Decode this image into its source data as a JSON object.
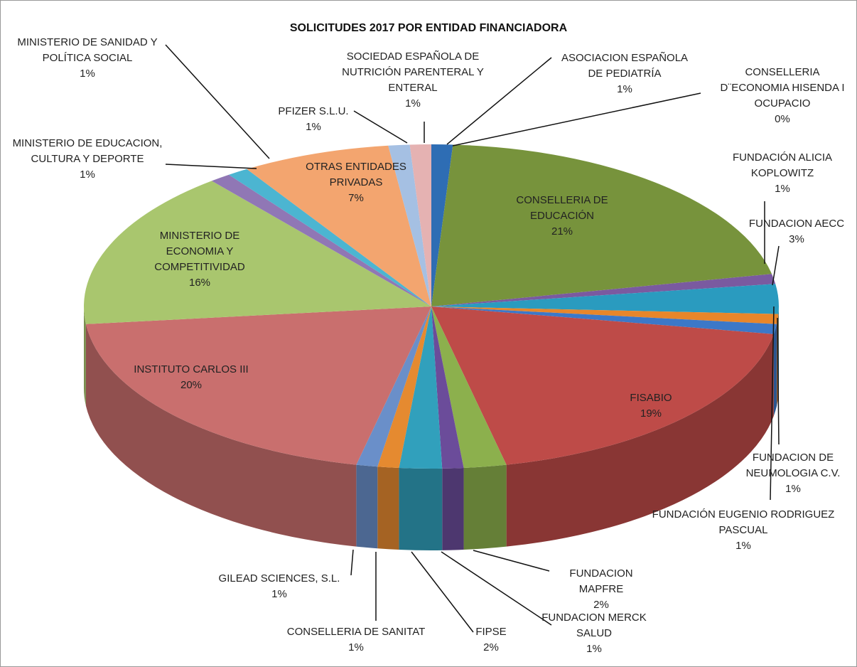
{
  "chart_data": {
    "type": "pie",
    "title": "SOLICITUDES 2017 POR ENTIDAD FINANCIADORA",
    "categories": [
      "ASOCIACION ESPAÑOLA DE PEDIATRÍA",
      "CONSELLERIA D¨ECONOMIA HISENDA I OCUPACIO",
      "CONSELLERIA DE EDUCACIÓN",
      "FUNDACIÓN ALICIA KOPLOWITZ",
      "FUNDACION AECC",
      "FUNDACIÓN EUGENIO RODRIGUEZ PASCUAL",
      "FUNDACION DE NEUMOLOGIA C.V.",
      "FISABIO",
      "FUNDACION MAPFRE",
      "FUNDACION MERCK SALUD",
      "FIPSE",
      "CONSELLERIA DE SANITAT",
      "GILEAD SCIENCES, S.L.",
      "INSTITUTO CARLOS III",
      "MINISTERIO DE ECONOMIA Y COMPETITIVIDAD",
      "MINISTERIO DE EDUCACION, CULTURA Y DEPORTE",
      "MINISTERIO DE SANIDAD Y POLÍTICA SOCIAL",
      "OTRAS ENTIDADES PRIVADAS",
      "PFIZER S.L.U.",
      "SOCIEDAD ESPAÑOLA DE NUTRICIÓN PARENTERAL Y ENTERAL"
    ],
    "values": [
      1,
      0,
      21,
      1,
      3,
      1,
      1,
      19,
      2,
      1,
      2,
      1,
      1,
      20,
      16,
      1,
      1,
      7,
      1,
      1
    ],
    "value_labels": [
      "1%",
      "0%",
      "21%",
      "1%",
      "3%",
      "1%",
      "1%",
      "19%",
      "2%",
      "1%",
      "2%",
      "1%",
      "1%",
      "20%",
      "16%",
      "1%",
      "1%",
      "7%",
      "1%",
      "1%"
    ],
    "colors": [
      "#2e6db4",
      "#a0332e",
      "#77933c",
      "#7a5aa0",
      "#2a9bbf",
      "#e8862a",
      "#3c78c8",
      "#be4b48",
      "#8cb04d",
      "#6b4c9a",
      "#31a0bc",
      "#e58a30",
      "#6a8fc9",
      "#c96f6e",
      "#a9c66e",
      "#9077b5",
      "#4cb5d1",
      "#f3a56f",
      "#a5c0e3",
      "#e5b2b2"
    ]
  }
}
